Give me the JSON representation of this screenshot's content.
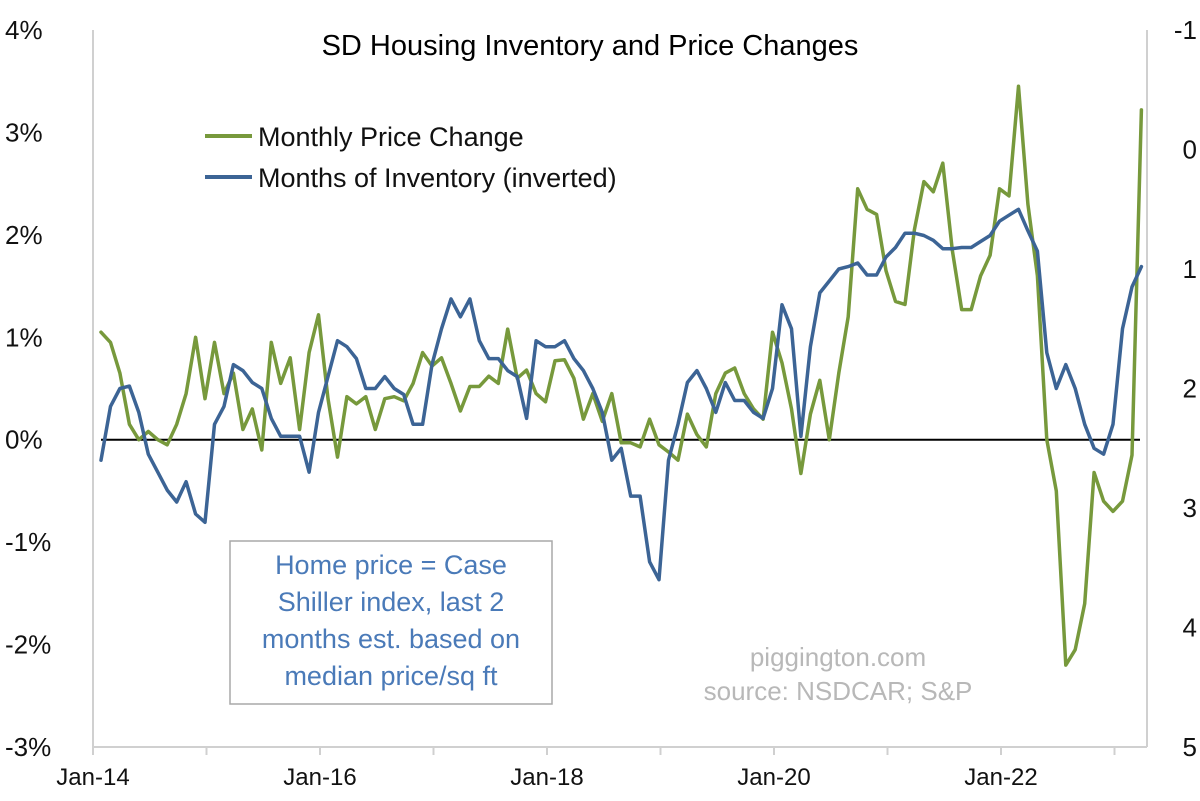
{
  "chart_data": {
    "type": "line",
    "title": "SD Housing Inventory and Price Changes",
    "x_tick_labels": [
      "Jan-14",
      "Jan-16",
      "Jan-18",
      "Jan-20",
      "Jan-22"
    ],
    "x_start": "Jan-14",
    "y_left": {
      "range": [
        -3,
        4
      ],
      "tick_labels": [
        "-3%",
        "-2%",
        "-1%",
        "0%",
        "1%",
        "2%",
        "3%",
        "4%"
      ]
    },
    "y_right": {
      "range": [
        -1,
        5
      ],
      "inverted": true,
      "tick_labels": [
        "-1",
        "0",
        "1",
        "2",
        "3",
        "4",
        "5"
      ]
    },
    "reference_line": {
      "axis": "left",
      "value": 0
    },
    "legend_position": "top-left",
    "series": [
      {
        "name": "Monthly Price Change",
        "axis": "left",
        "color": "#77993c",
        "values": [
          1.05,
          0.95,
          0.65,
          0.15,
          0.0,
          0.08,
          0.0,
          -0.05,
          0.15,
          0.45,
          1.0,
          0.4,
          0.95,
          0.45,
          0.65,
          0.1,
          0.3,
          -0.1,
          0.95,
          0.55,
          0.8,
          0.1,
          0.85,
          1.22,
          0.4,
          -0.17,
          0.42,
          0.35,
          0.42,
          0.1,
          0.4,
          0.42,
          0.38,
          0.55,
          0.85,
          0.72,
          0.8,
          0.55,
          0.28,
          0.52,
          0.52,
          0.62,
          0.55,
          1.08,
          0.6,
          0.68,
          0.45,
          0.37,
          0.77,
          0.78,
          0.6,
          0.2,
          0.45,
          0.18,
          0.45,
          -0.03,
          -0.03,
          -0.07,
          0.2,
          -0.05,
          -0.12,
          -0.2,
          0.25,
          0.05,
          -0.07,
          0.45,
          0.65,
          0.7,
          0.45,
          0.3,
          0.2,
          1.05,
          0.75,
          0.3,
          -0.33,
          0.25,
          0.58,
          0.0,
          0.65,
          1.2,
          2.45,
          2.25,
          2.2,
          1.65,
          1.35,
          1.32,
          2.05,
          2.52,
          2.42,
          2.7,
          1.85,
          1.27,
          1.27,
          1.6,
          1.8,
          2.45,
          2.38,
          3.45,
          2.3,
          1.6,
          0.0,
          -0.5,
          -2.2,
          -2.05,
          -1.6,
          -0.32,
          -0.6,
          -0.7,
          -0.6,
          -0.15,
          3.22
        ],
        "line_width": 3.5
      },
      {
        "name": "Months of Inventory (inverted)",
        "axis": "right",
        "color": "#3c6495",
        "values": [
          2.6,
          2.15,
          2.0,
          1.98,
          2.2,
          2.55,
          2.7,
          2.85,
          2.95,
          2.78,
          3.05,
          3.12,
          2.3,
          2.15,
          1.8,
          1.85,
          1.95,
          2.0,
          2.25,
          2.4,
          2.4,
          2.4,
          2.7,
          2.2,
          1.9,
          1.6,
          1.65,
          1.75,
          2.0,
          2.0,
          1.9,
          2.0,
          2.05,
          2.3,
          2.3,
          1.8,
          1.5,
          1.25,
          1.4,
          1.25,
          1.6,
          1.75,
          1.75,
          1.85,
          1.9,
          2.25,
          1.6,
          1.65,
          1.65,
          1.6,
          1.75,
          1.85,
          2.0,
          2.2,
          2.6,
          2.5,
          2.9,
          2.9,
          3.45,
          3.6,
          2.6,
          2.3,
          1.95,
          1.85,
          2.0,
          2.2,
          1.95,
          2.1,
          2.1,
          2.2,
          2.25,
          2.0,
          1.3,
          1.5,
          2.4,
          1.65,
          1.2,
          1.1,
          1.0,
          0.98,
          0.95,
          1.05,
          1.05,
          0.9,
          0.82,
          0.7,
          0.7,
          0.72,
          0.76,
          0.83,
          0.83,
          0.82,
          0.82,
          0.77,
          0.72,
          0.6,
          0.55,
          0.5,
          0.68,
          0.85,
          1.7,
          2.0,
          1.8,
          2.0,
          2.3,
          2.5,
          2.55,
          2.3,
          1.5,
          1.15,
          0.98
        ],
        "line_width": 3.5
      }
    ],
    "annotations": {
      "note_lines": [
        "Home price = Case",
        "Shiller index, last 2",
        "months est. based on",
        "median price/sq ft"
      ],
      "credit_lines": [
        "piggington.com",
        "source: NSDCAR; S&P"
      ]
    }
  }
}
